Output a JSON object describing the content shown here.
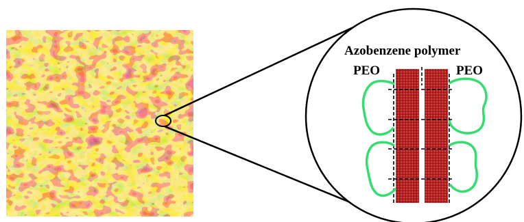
{
  "figure": {
    "labels": {
      "top": "Azobenzene polymer",
      "left": "PEO",
      "right": "PEO"
    },
    "colors": {
      "afm_dark": "#7a1a05",
      "afm_mid": "#c4561a",
      "afm_light": "#f2d640",
      "polymer": "#b21f1f",
      "peo": "#33dd6e",
      "outline": "#000000"
    }
  }
}
